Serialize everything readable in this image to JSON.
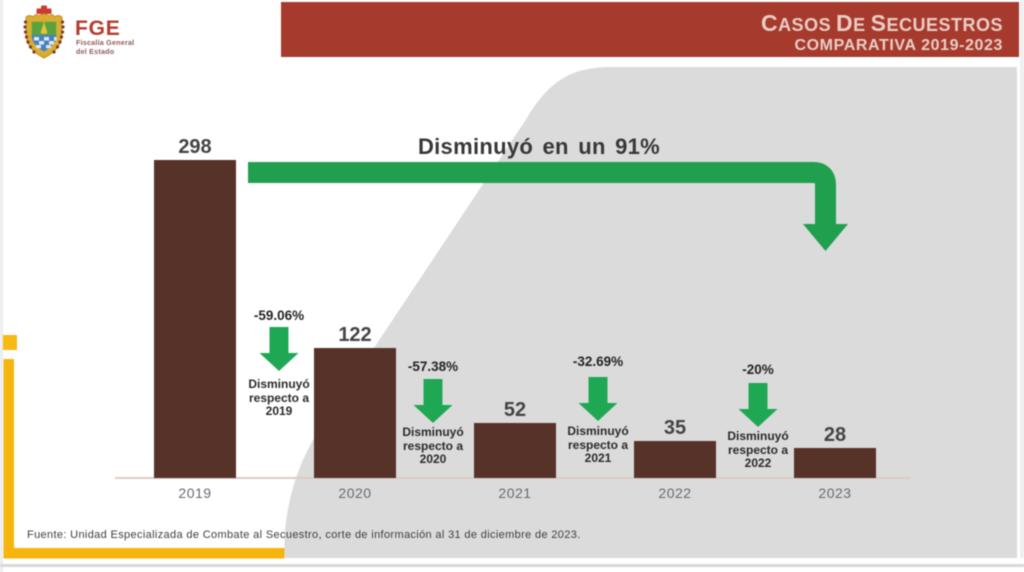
{
  "slide": {
    "logo": {
      "emblem_icon": "veracruz-coat-of-arms",
      "acronym": "FGE",
      "org_line1": "Fiscalía General",
      "org_line2": "del Estado"
    },
    "header": {
      "title": "Casos de Secuestros",
      "subtitle": "COMPARATIVA 2019-2023",
      "band_color": "#a63b2d"
    },
    "footer": {
      "source": "Fuente: Unidad Especializada de Combate al Secuestro, corte de información al 31 de diciembre de 2023."
    },
    "accent_colors": {
      "yellow": "#f5b40e",
      "green": "#1fa24f",
      "gray_shape": "#dbdbdb",
      "bar_brown": "#563229"
    }
  },
  "chart_data": {
    "type": "bar",
    "title": "Casos de Secuestros — Comparativa 2019-2023",
    "categories": [
      "2019",
      "2020",
      "2021",
      "2022",
      "2023"
    ],
    "values": [
      298,
      122,
      52,
      35,
      28
    ],
    "ylim": [
      0,
      298
    ],
    "grid": false,
    "bar_color": "#563229",
    "overall_annotation": "Disminuyó en un 91%",
    "decrease_annotations": [
      {
        "pct": "-59.06%",
        "lines": [
          "Disminuyó",
          "respecto a",
          "2019"
        ]
      },
      {
        "pct": "-57.38%",
        "lines": [
          "Disminuyó",
          "respecto a",
          "2020"
        ]
      },
      {
        "pct": "-32.69%",
        "lines": [
          "Disminuyó",
          "respecto a",
          "2021"
        ]
      },
      {
        "pct": "-20%",
        "lines": [
          "Disminuyó",
          "respecto a",
          "2022"
        ]
      }
    ]
  }
}
